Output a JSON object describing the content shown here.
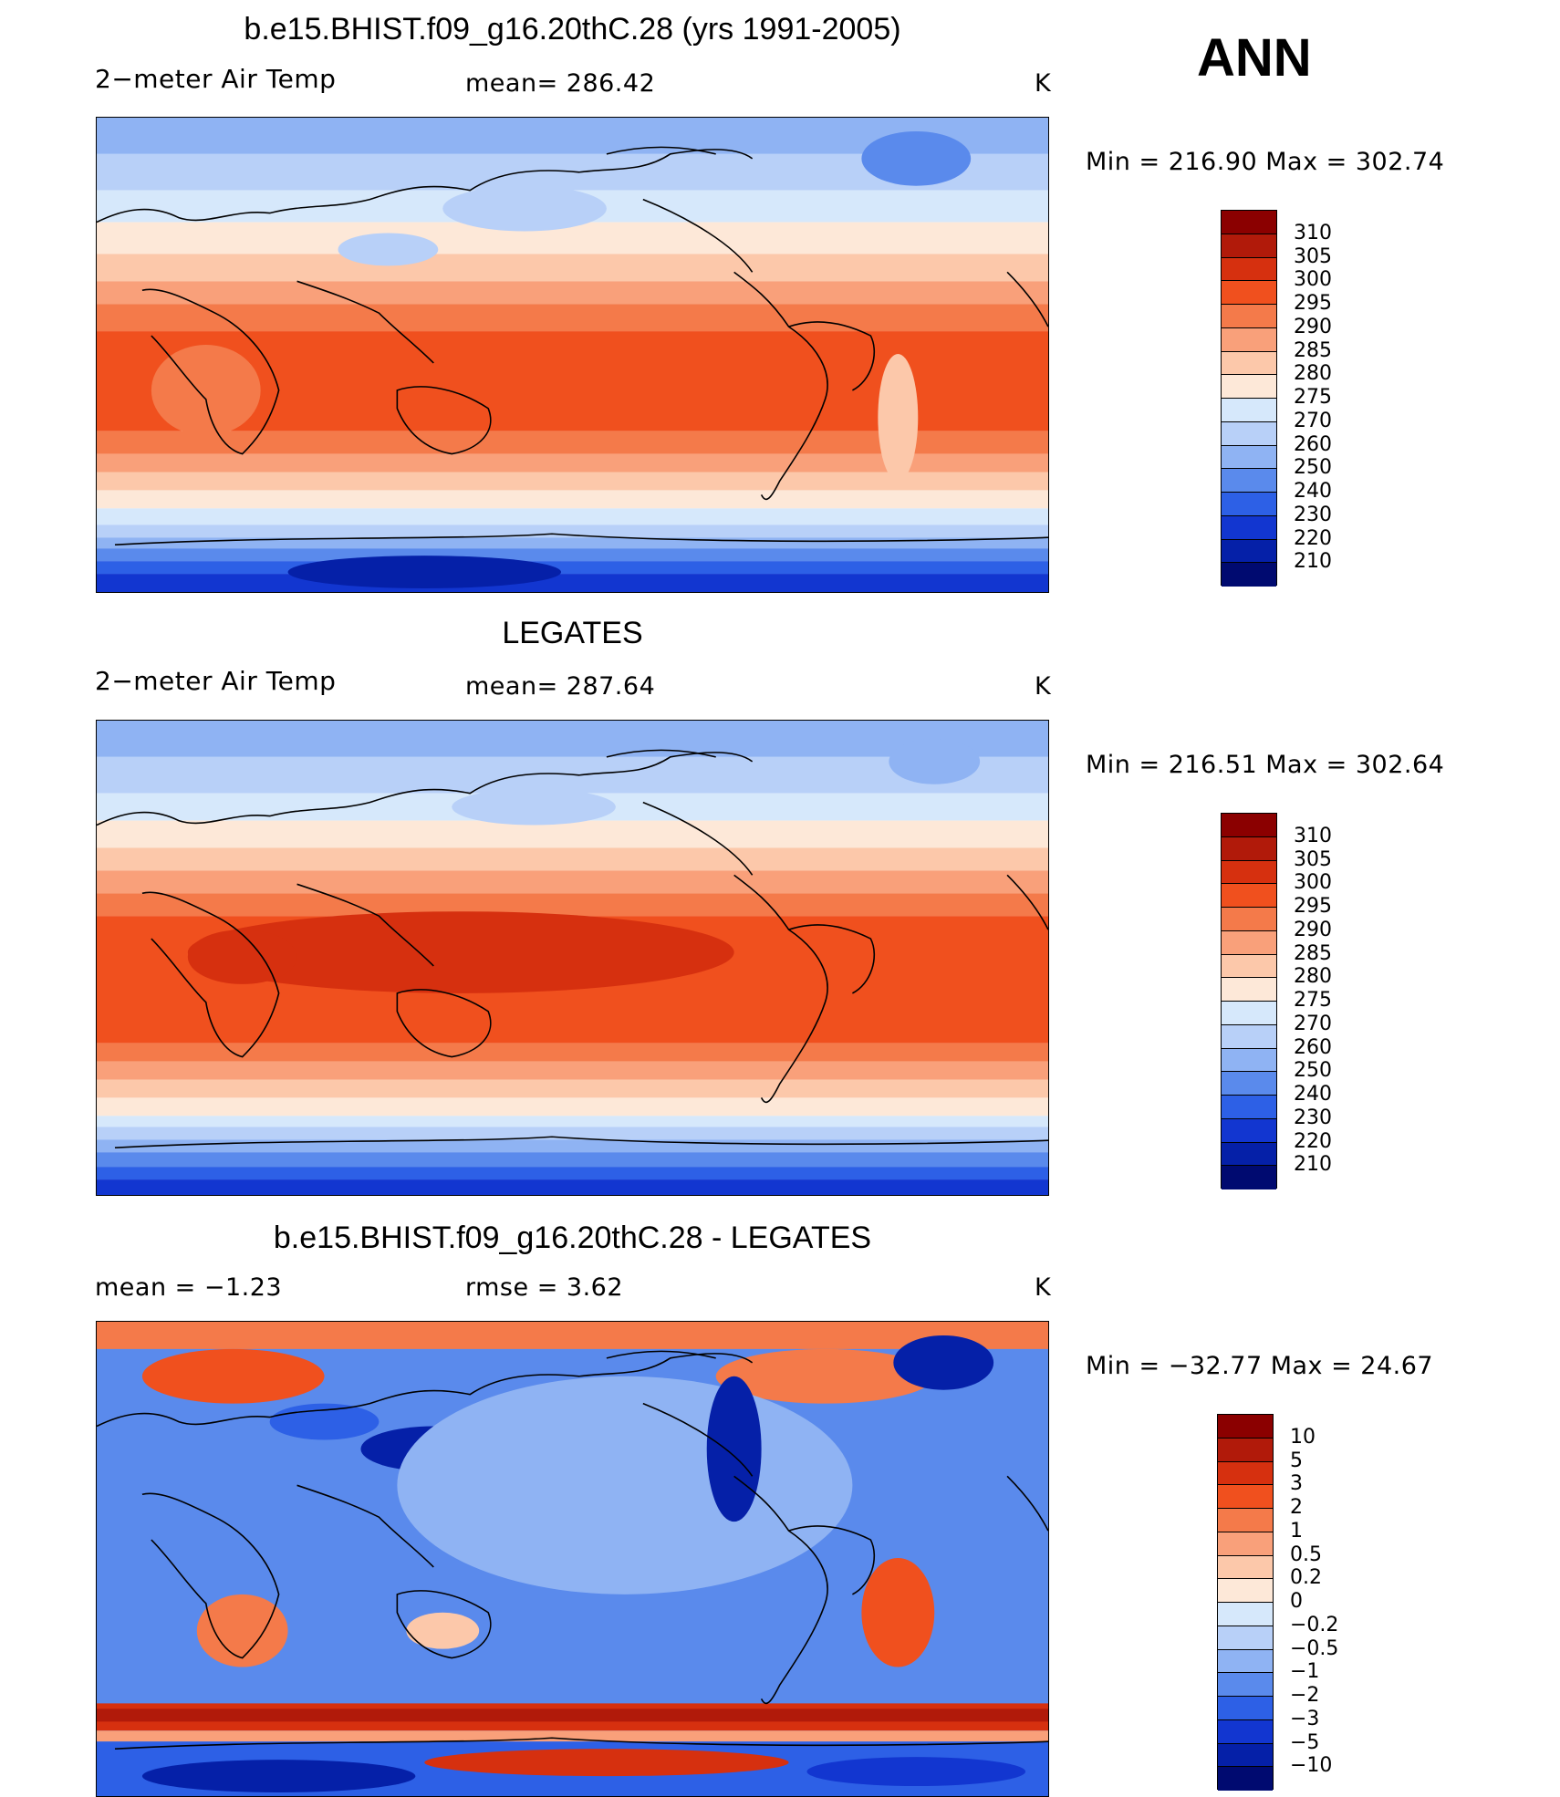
{
  "season": "ANN",
  "units": "K",
  "panels": [
    {
      "id": "model",
      "title": "b.e15.BHIST.f09_g16.20thC.28 (yrs 1991-2005)",
      "left_label": "2−meter Air Temp",
      "stat_text": "mean=  286.42",
      "units": "K",
      "minmax": "Min  =  216.90  Max  =  302.74",
      "stat_values": {
        "mean": 286.42,
        "min": 216.9,
        "max": 302.74
      }
    },
    {
      "id": "obs",
      "title": "LEGATES",
      "left_label": "2−meter Air Temp",
      "stat_text": "mean=  287.64",
      "units": "K",
      "minmax": "Min  =  216.51  Max  =  302.64",
      "stat_values": {
        "mean": 287.64,
        "min": 216.51,
        "max": 302.64
      }
    },
    {
      "id": "diff",
      "title": "b.e15.BHIST.f09_g16.20thC.28 - LEGATES",
      "left_label": "mean =    −1.23",
      "stat_text": "rmse =     3.62",
      "units": "K",
      "minmax": "Min  =  −32.77  Max  =    24.67",
      "stat_values": {
        "mean": -1.23,
        "rmse": 3.62,
        "min": -32.77,
        "max": 24.67
      }
    }
  ],
  "colorbars": {
    "temperature": {
      "labels": [
        "310",
        "305",
        "300",
        "295",
        "290",
        "285",
        "280",
        "275",
        "270",
        "260",
        "250",
        "240",
        "230",
        "220",
        "210"
      ],
      "colors": [
        "#8b0000",
        "#b11a0a",
        "#d6300f",
        "#f0501e",
        "#f47a4a",
        "#f9a07a",
        "#fcc8aa",
        "#fde8d8",
        "#d6e8fb",
        "#b8d0f8",
        "#8fb3f3",
        "#5a8aec",
        "#2d60e6",
        "#1236d0",
        "#0520a8",
        "#000a70"
      ]
    },
    "difference": {
      "labels": [
        "10",
        "5",
        "3",
        "2",
        "1",
        "0.5",
        "0.2",
        "0",
        "−0.2",
        "−0.5",
        "−1",
        "−2",
        "−3",
        "−5",
        "−10"
      ],
      "colors": [
        "#8b0000",
        "#b11a0a",
        "#d6300f",
        "#f0501e",
        "#f47a4a",
        "#f9a07a",
        "#fcc8aa",
        "#fde8d8",
        "#d6e8fb",
        "#b8d0f8",
        "#8fb3f3",
        "#5a8aec",
        "#2d60e6",
        "#1236d0",
        "#0520a8",
        "#000a70"
      ]
    }
  },
  "map_data": {
    "type": "filled_contour_map",
    "projection": "cylindrical equidistant, centered on 180",
    "variable": "2-meter Air Temp",
    "period": "ANN",
    "units": "K",
    "levels_temperature": [
      210,
      220,
      230,
      240,
      250,
      260,
      270,
      275,
      280,
      285,
      290,
      295,
      300,
      305,
      310
    ],
    "levels_difference": [
      -10,
      -5,
      -3,
      -2,
      -1,
      -0.5,
      -0.2,
      0,
      0.2,
      0.5,
      1,
      2,
      3,
      5,
      10
    ]
  }
}
